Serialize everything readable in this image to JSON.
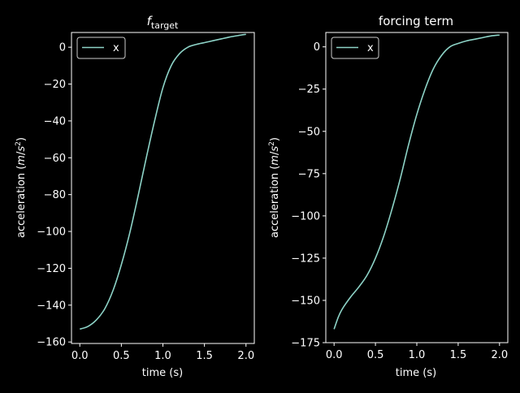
{
  "chart_data": [
    {
      "type": "line",
      "title_main": "f",
      "title_sub": "target",
      "xlabel": "time (s)",
      "ylabel_prefix": "acceleration (",
      "ylabel_unit_m": "m",
      "ylabel_unit_s": "s",
      "ylabel_unit_exp": "2",
      "ylabel_suffix": ")",
      "xlim": [
        -0.1,
        2.1
      ],
      "ylim": [
        -160.8,
        8.0
      ],
      "xticks": [
        0.0,
        0.5,
        1.0,
        1.5,
        2.0
      ],
      "xtick_labels": [
        "0.0",
        "0.5",
        "1.0",
        "1.5",
        "2.0"
      ],
      "yticks": [
        0,
        -20,
        -40,
        -60,
        -80,
        -100,
        -120,
        -140,
        -160
      ],
      "ytick_labels": [
        "0",
        "−20",
        "−40",
        "−60",
        "−80",
        "−100",
        "−120",
        "−140",
        "−160"
      ],
      "grid": false,
      "legend_position": "top-left",
      "series": [
        {
          "name": "x",
          "color": "#8dd3c7",
          "x": [
            0.0,
            0.1,
            0.2,
            0.3,
            0.4,
            0.5,
            0.6,
            0.7,
            0.8,
            0.9,
            1.0,
            1.1,
            1.2,
            1.3,
            1.4,
            1.5,
            1.6,
            1.7,
            1.8,
            1.9,
            2.0
          ],
          "y": [
            -153,
            -151.5,
            -148,
            -142,
            -132,
            -118,
            -101,
            -81,
            -60,
            -40,
            -22,
            -10,
            -3.5,
            0,
            1.5,
            2.5,
            3.5,
            4.5,
            5.5,
            6.3,
            7
          ]
        }
      ]
    },
    {
      "type": "line",
      "title": "forcing term",
      "xlabel": "time (s)",
      "ylabel_prefix": "acceleration (",
      "ylabel_unit_m": "m",
      "ylabel_unit_s": "s",
      "ylabel_unit_exp": "2",
      "ylabel_suffix": ")",
      "xlim": [
        -0.1,
        2.1
      ],
      "ylim": [
        -175.0,
        8.5
      ],
      "xticks": [
        0.0,
        0.5,
        1.0,
        1.5,
        2.0
      ],
      "xtick_labels": [
        "0.0",
        "0.5",
        "1.0",
        "1.5",
        "2.0"
      ],
      "yticks": [
        0,
        -25,
        -50,
        -75,
        -100,
        -125,
        -150,
        -175
      ],
      "ytick_labels": [
        "0",
        "−25",
        "−50",
        "−75",
        "−100",
        "−125",
        "−150",
        "−175"
      ],
      "grid": false,
      "legend_position": "top-left",
      "series": [
        {
          "name": "x",
          "color": "#8dd3c7",
          "x": [
            0.0,
            0.05,
            0.1,
            0.2,
            0.3,
            0.4,
            0.5,
            0.6,
            0.7,
            0.8,
            0.9,
            1.0,
            1.1,
            1.2,
            1.3,
            1.4,
            1.5,
            1.6,
            1.7,
            1.8,
            1.9,
            2.0
          ],
          "y": [
            -167,
            -160,
            -155,
            -148,
            -142,
            -135,
            -125,
            -112,
            -96,
            -78,
            -58,
            -40,
            -25,
            -13,
            -5,
            0,
            2,
            3.5,
            4.5,
            5.5,
            6.5,
            7
          ]
        }
      ]
    }
  ]
}
